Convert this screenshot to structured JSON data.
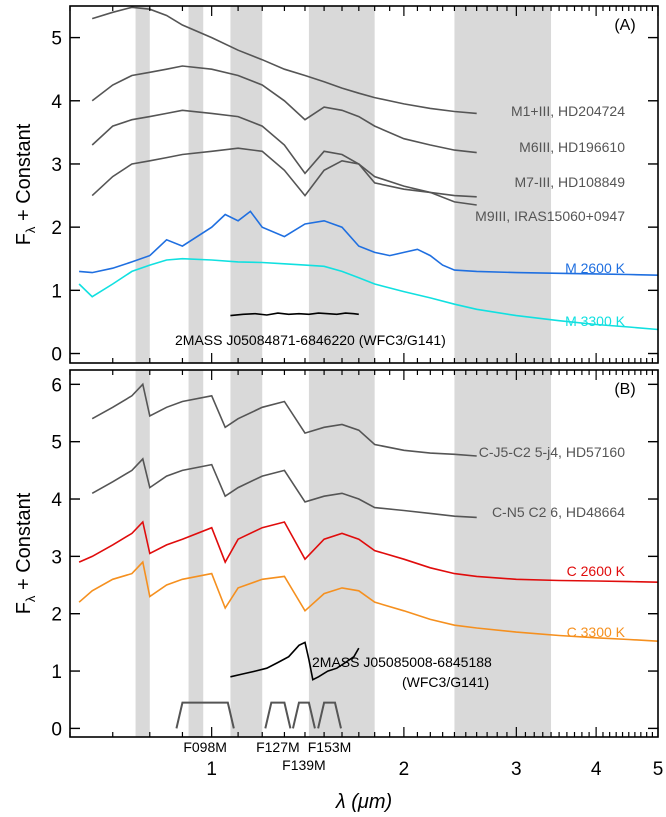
{
  "chart_data": {
    "type": "line",
    "xlabel": "λ (μm)",
    "x_scale": "log",
    "xlim": [
      0.6,
      5.0
    ],
    "x_tick_labels": [
      {
        "value": 1,
        "label": "1"
      },
      {
        "value": 2,
        "label": "2"
      },
      {
        "value": 3,
        "label": "3"
      },
      {
        "value": 4,
        "label": "4"
      },
      {
        "value": 5,
        "label": "5"
      }
    ],
    "shaded_bands": [
      [
        0.76,
        0.8
      ],
      [
        0.92,
        0.97
      ],
      [
        1.07,
        1.2
      ],
      [
        1.42,
        1.8
      ],
      [
        2.4,
        3.4
      ]
    ],
    "filters": [
      {
        "label": "F098M",
        "range": [
          0.9,
          1.06
        ]
      },
      {
        "label": "F127M",
        "range": [
          1.24,
          1.3
        ]
      },
      {
        "label": "F139M",
        "range": [
          1.37,
          1.42
        ]
      },
      {
        "label": "F153M",
        "range": [
          1.5,
          1.56
        ]
      }
    ],
    "panels": [
      {
        "tag": "(A)",
        "ylabel_main": "F",
        "ylabel_sub": "λ",
        "ylabel_rest": " + Constant",
        "ylim": [
          -0.15,
          5.5
        ],
        "y_ticks": [
          0,
          1,
          2,
          3,
          4,
          5
        ],
        "series": [
          {
            "label": "M1+III, HD204724",
            "color": "#555555",
            "x": [
              0.65,
              0.7,
              0.75,
              0.8,
              0.85,
              0.9,
              1.0,
              1.1,
              1.2,
              1.3,
              1.4,
              1.5,
              1.6,
              1.7,
              1.8,
              2.0,
              2.2,
              2.4,
              2.6
            ],
            "y": [
              5.3,
              5.4,
              5.48,
              5.45,
              5.35,
              5.2,
              5.0,
              4.8,
              4.65,
              4.5,
              4.4,
              4.3,
              4.2,
              4.12,
              4.05,
              3.95,
              3.88,
              3.83,
              3.8
            ]
          },
          {
            "label": "M6III, HD196610",
            "color": "#555555",
            "x": [
              0.65,
              0.7,
              0.75,
              0.8,
              0.85,
              0.9,
              1.0,
              1.1,
              1.2,
              1.3,
              1.4,
              1.5,
              1.6,
              1.7,
              1.8,
              2.0,
              2.2,
              2.4,
              2.6
            ],
            "y": [
              4.0,
              4.25,
              4.4,
              4.45,
              4.5,
              4.55,
              4.5,
              4.4,
              4.25,
              4.0,
              3.7,
              3.9,
              3.85,
              3.75,
              3.6,
              3.4,
              3.3,
              3.22,
              3.18
            ]
          },
          {
            "label": "M7-III, HD108849",
            "color": "#555555",
            "x": [
              0.65,
              0.7,
              0.75,
              0.8,
              0.85,
              0.9,
              1.0,
              1.1,
              1.2,
              1.3,
              1.4,
              1.5,
              1.6,
              1.7,
              1.8,
              2.0,
              2.2,
              2.4,
              2.6
            ],
            "y": [
              3.3,
              3.6,
              3.7,
              3.75,
              3.8,
              3.85,
              3.8,
              3.75,
              3.6,
              3.3,
              2.85,
              3.2,
              3.15,
              3.0,
              2.8,
              2.65,
              2.55,
              2.5,
              2.48
            ]
          },
          {
            "label": "M9III, IRAS15060+0947",
            "color": "#555555",
            "x": [
              0.65,
              0.7,
              0.75,
              0.8,
              0.85,
              0.9,
              1.0,
              1.1,
              1.2,
              1.3,
              1.4,
              1.5,
              1.6,
              1.7,
              1.8,
              2.0,
              2.2,
              2.4,
              2.6
            ],
            "y": [
              2.5,
              2.8,
              3.0,
              3.05,
              3.1,
              3.15,
              3.2,
              3.25,
              3.2,
              2.9,
              2.5,
              2.9,
              3.05,
              3.0,
              2.7,
              2.6,
              2.55,
              2.4,
              2.35
            ]
          },
          {
            "label": "M 2600 K",
            "color": "#1f6fe0",
            "x": [
              0.62,
              0.65,
              0.7,
              0.75,
              0.8,
              0.85,
              0.9,
              1.0,
              1.05,
              1.1,
              1.15,
              1.2,
              1.3,
              1.4,
              1.5,
              1.6,
              1.7,
              1.8,
              1.9,
              2.0,
              2.1,
              2.2,
              2.3,
              2.4,
              2.6,
              3.0,
              3.5,
              4.0,
              4.5,
              5.0
            ],
            "y": [
              1.3,
              1.28,
              1.35,
              1.45,
              1.55,
              1.8,
              1.7,
              2.0,
              2.2,
              2.1,
              2.25,
              2.0,
              1.85,
              2.05,
              2.1,
              2.0,
              1.7,
              1.6,
              1.55,
              1.6,
              1.65,
              1.55,
              1.4,
              1.32,
              1.3,
              1.28,
              1.27,
              1.26,
              1.25,
              1.24
            ]
          },
          {
            "label": "M 3300 K",
            "color": "#11e0e0",
            "x": [
              0.62,
              0.65,
              0.7,
              0.75,
              0.8,
              0.85,
              0.9,
              1.0,
              1.1,
              1.2,
              1.3,
              1.4,
              1.5,
              1.6,
              1.7,
              1.8,
              2.0,
              2.2,
              2.4,
              2.6,
              3.0,
              3.5,
              4.0,
              4.5,
              5.0
            ],
            "y": [
              1.1,
              0.9,
              1.1,
              1.3,
              1.4,
              1.48,
              1.5,
              1.48,
              1.45,
              1.44,
              1.42,
              1.4,
              1.38,
              1.3,
              1.2,
              1.1,
              0.98,
              0.88,
              0.78,
              0.7,
              0.6,
              0.52,
              0.46,
              0.42,
              0.38
            ]
          },
          {
            "label": "2MASS J05084871-6846220 (WFC3/G141)",
            "color": "#000000",
            "x": [
              1.07,
              1.12,
              1.17,
              1.22,
              1.27,
              1.32,
              1.37,
              1.42,
              1.47,
              1.52,
              1.57,
              1.62,
              1.67,
              1.7
            ],
            "y": [
              0.6,
              0.62,
              0.63,
              0.61,
              0.64,
              0.62,
              0.63,
              0.62,
              0.64,
              0.63,
              0.62,
              0.64,
              0.63,
              0.62
            ]
          }
        ]
      },
      {
        "tag": "(B)",
        "ylabel_main": "F",
        "ylabel_sub": "λ",
        "ylabel_rest": " + Constant",
        "ylim": [
          -0.15,
          6.25
        ],
        "y_ticks": [
          0,
          1,
          2,
          3,
          4,
          5,
          6
        ],
        "series": [
          {
            "label": "C-J5-C2 5-j4, HD57160",
            "color": "#555555",
            "x": [
              0.65,
              0.7,
              0.75,
              0.78,
              0.8,
              0.85,
              0.9,
              1.0,
              1.05,
              1.1,
              1.2,
              1.3,
              1.4,
              1.5,
              1.6,
              1.7,
              1.8,
              2.0,
              2.2,
              2.4,
              2.6
            ],
            "y": [
              5.4,
              5.6,
              5.8,
              6.0,
              5.45,
              5.6,
              5.7,
              5.8,
              5.25,
              5.4,
              5.6,
              5.7,
              5.15,
              5.25,
              5.3,
              5.2,
              4.95,
              4.85,
              4.8,
              4.78,
              4.75
            ]
          },
          {
            "label": "C-N5 C2 6, HD48664",
            "color": "#555555",
            "x": [
              0.65,
              0.7,
              0.75,
              0.78,
              0.8,
              0.85,
              0.9,
              1.0,
              1.05,
              1.1,
              1.2,
              1.3,
              1.4,
              1.5,
              1.6,
              1.7,
              1.8,
              2.0,
              2.2,
              2.4,
              2.6
            ],
            "y": [
              4.1,
              4.3,
              4.5,
              4.7,
              4.2,
              4.4,
              4.5,
              4.6,
              4.05,
              4.2,
              4.4,
              4.5,
              3.95,
              4.05,
              4.1,
              4.0,
              3.85,
              3.8,
              3.75,
              3.7,
              3.68
            ]
          },
          {
            "label": "C 2600 K",
            "color": "#e00c0c",
            "x": [
              0.62,
              0.65,
              0.7,
              0.75,
              0.78,
              0.8,
              0.85,
              0.9,
              1.0,
              1.05,
              1.1,
              1.2,
              1.3,
              1.4,
              1.5,
              1.6,
              1.7,
              1.8,
              2.0,
              2.2,
              2.4,
              2.6,
              3.0,
              3.5,
              4.0,
              4.5,
              5.0
            ],
            "y": [
              2.9,
              3.0,
              3.2,
              3.4,
              3.6,
              3.05,
              3.2,
              3.3,
              3.5,
              2.9,
              3.3,
              3.5,
              3.6,
              2.95,
              3.3,
              3.4,
              3.3,
              3.1,
              2.95,
              2.8,
              2.7,
              2.65,
              2.6,
              2.58,
              2.57,
              2.56,
              2.55
            ]
          },
          {
            "label": "C 3300 K",
            "color": "#f5901f",
            "x": [
              0.62,
              0.65,
              0.7,
              0.75,
              0.78,
              0.8,
              0.85,
              0.9,
              1.0,
              1.05,
              1.1,
              1.2,
              1.3,
              1.4,
              1.5,
              1.6,
              1.7,
              1.8,
              2.0,
              2.2,
              2.4,
              2.6,
              3.0,
              3.5,
              4.0,
              4.5,
              5.0
            ],
            "y": [
              2.2,
              2.4,
              2.6,
              2.7,
              2.9,
              2.3,
              2.5,
              2.6,
              2.7,
              2.1,
              2.45,
              2.6,
              2.65,
              2.05,
              2.35,
              2.45,
              2.4,
              2.2,
              2.05,
              1.9,
              1.8,
              1.75,
              1.68,
              1.62,
              1.58,
              1.55,
              1.52
            ]
          },
          {
            "label": "2MASS J05085008-6845188\n(WFC3/G141)",
            "color": "#000000",
            "x": [
              1.07,
              1.12,
              1.17,
              1.22,
              1.27,
              1.32,
              1.37,
              1.4,
              1.42,
              1.44,
              1.47,
              1.52,
              1.57,
              1.62,
              1.67,
              1.7
            ],
            "y": [
              0.9,
              0.95,
              1.0,
              1.05,
              1.15,
              1.25,
              1.45,
              1.5,
              1.2,
              0.85,
              0.9,
              1.0,
              1.05,
              1.15,
              1.25,
              1.4
            ]
          }
        ]
      }
    ]
  }
}
